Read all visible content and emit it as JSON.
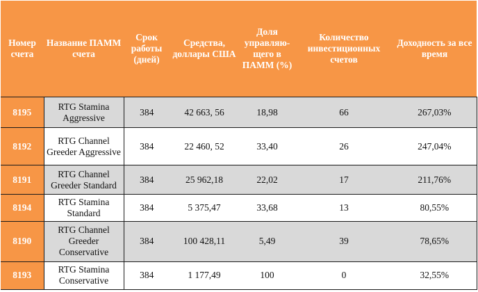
{
  "colors": {
    "accent": "#f79646",
    "stripe": "#d9d9d9",
    "text_light": "#ffffff"
  },
  "table": {
    "headers": [
      "Номер счета",
      "Название ПАММ счета",
      "Срок работы (дней)",
      "Средства, доллары США",
      "Доля управляю-щего в ПАММ (%)",
      "Количество инвестиционных счетов",
      "Доходность за все время"
    ],
    "rows": [
      [
        "8195",
        "RTG Stamina Aggressive",
        "384",
        "42 663, 56",
        "18,98",
        "66",
        "267,03%"
      ],
      [
        "8192",
        "RTG Channel Greeder Aggressive",
        "384",
        "22 460, 52",
        "33,40",
        "26",
        "247,04%"
      ],
      [
        "8191",
        "RTG Channel Greeder Standard",
        "384",
        "25 962,18",
        "22,02",
        "17",
        "211,76%"
      ],
      [
        "8194",
        "RTG Stamina Standard",
        "384",
        "5 375,47",
        "33,68",
        "13",
        "80,55%"
      ],
      [
        "8190",
        "RTG Channel Greeder Conservative",
        "384",
        "100 428,11",
        "5,49",
        "39",
        "78,65%"
      ],
      [
        "8193",
        "RTG Stamina Conservative",
        "384",
        "1 177,49",
        "100",
        "0",
        "32,55%"
      ]
    ]
  }
}
